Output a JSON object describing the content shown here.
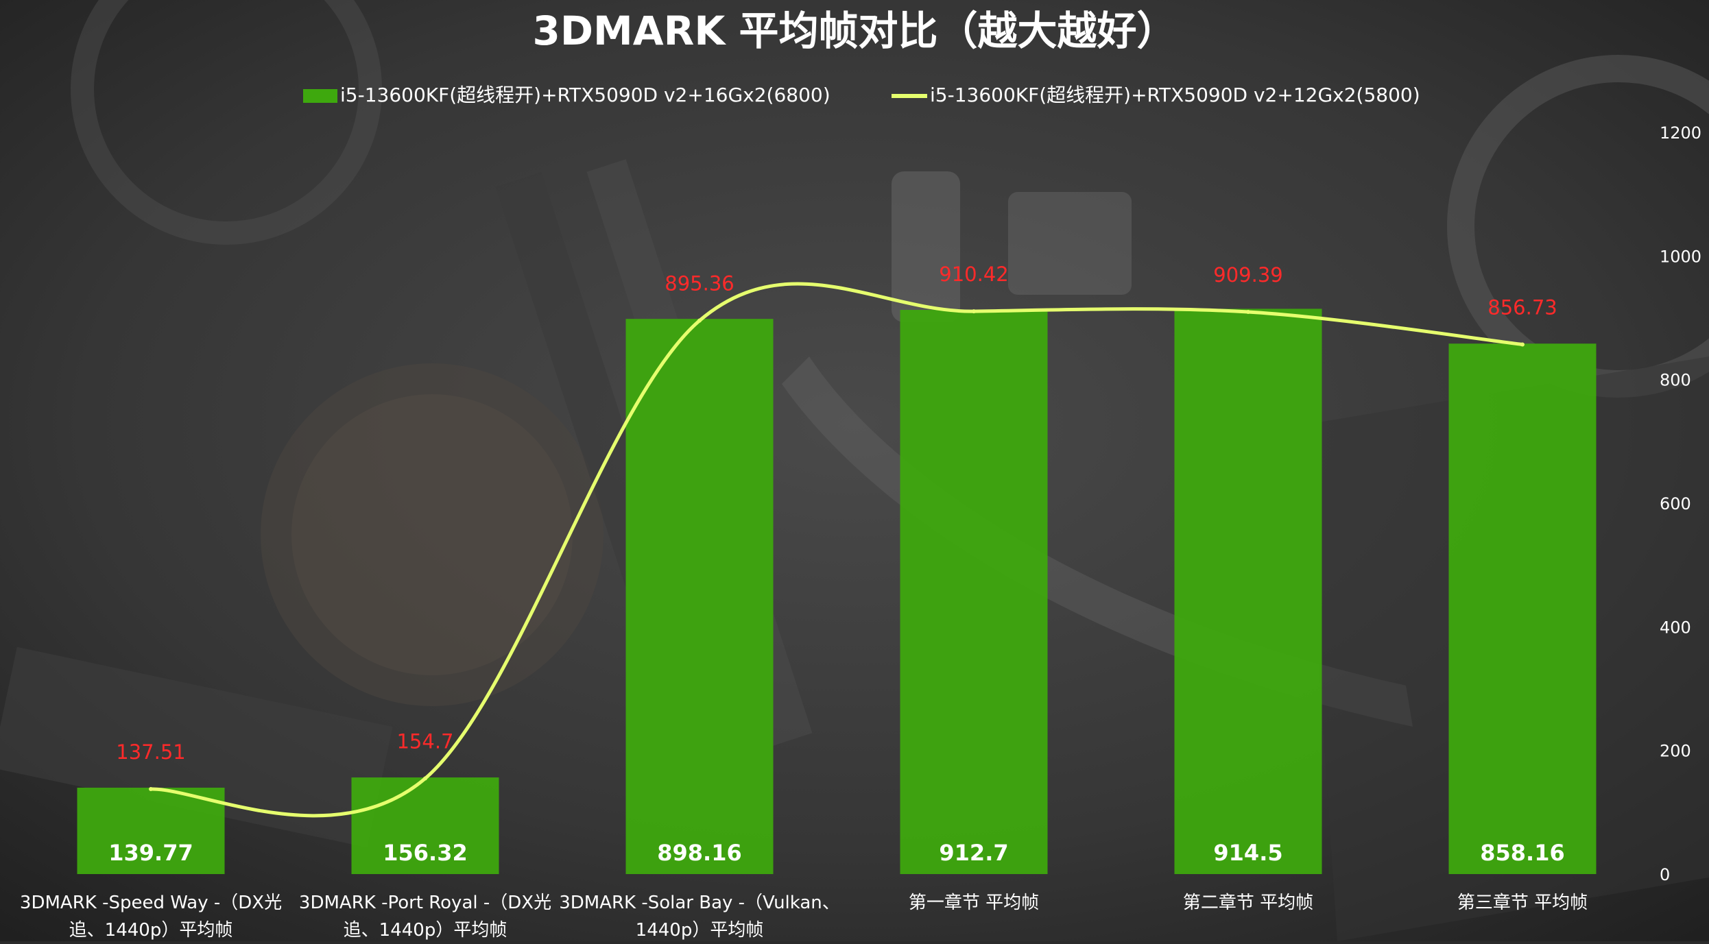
{
  "chart_data": {
    "type": "bar",
    "title": "3DMARK 平均帧对比（越大越好）",
    "categories": [
      [
        "3DMARK -Speed Way -（DX光",
        "追、1440p）平均帧"
      ],
      [
        "3DMARK -Port Royal -（DX光",
        "追、1440p）平均帧"
      ],
      [
        "3DMARK -Solar Bay -（Vulkan、",
        "1440p）平均帧"
      ],
      [
        "第一章节 平均帧"
      ],
      [
        "第二章节 平均帧"
      ],
      [
        "第三章节 平均帧"
      ]
    ],
    "series": [
      {
        "name": "i5-13600KF(超线程开)+RTX5090D v2+16Gx2(6800)",
        "type": "bar",
        "color": "#3ea80e",
        "values": [
          139.77,
          156.32,
          898.16,
          912.7,
          914.5,
          858.16
        ],
        "labels": [
          "139.77",
          "156.32",
          "898.16",
          "912.7",
          "914.5",
          "858.16"
        ]
      },
      {
        "name": "i5-13600KF(超线程开)+RTX5090D v2+12Gx2(5800)",
        "type": "line",
        "color": "#e6ff6e",
        "values": [
          137.51,
          154.7,
          895.36,
          910.42,
          909.39,
          856.73
        ],
        "labels": [
          "137.51",
          "154.7",
          "895.36",
          "910.42",
          "909.39",
          "856.73"
        ]
      }
    ],
    "y_axis": {
      "position": "right",
      "ylim": [
        0,
        1200
      ],
      "ticks": [
        "0",
        "200",
        "400",
        "600",
        "800",
        "1000",
        "1200"
      ]
    },
    "legend_position": "top-center",
    "grid": false,
    "line_label_color": "#ff2a2a",
    "bar_label_color": "#ffffff"
  }
}
